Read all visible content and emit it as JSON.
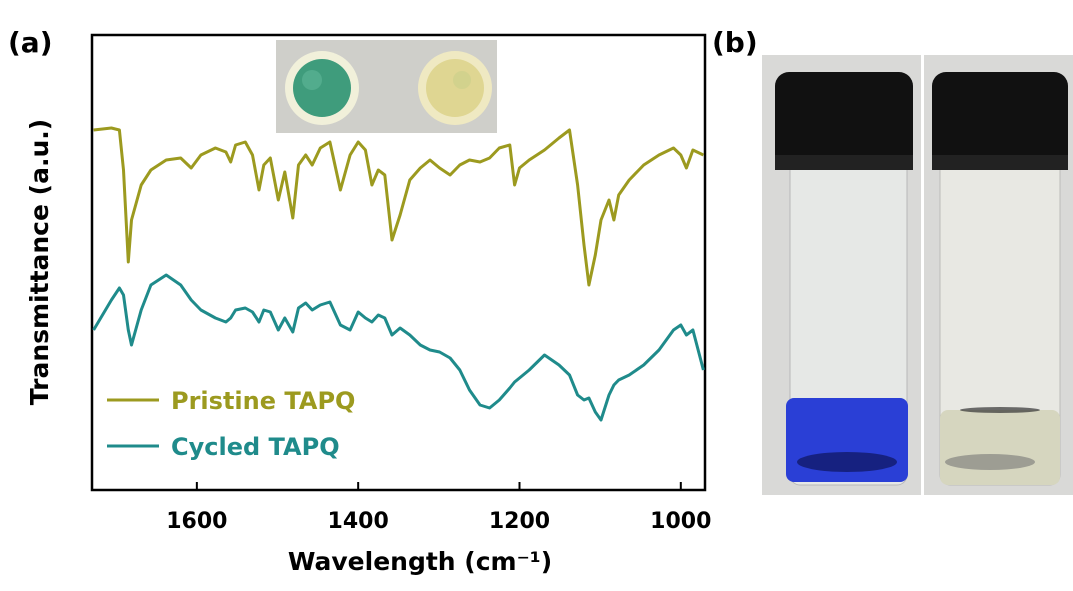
{
  "chart_data": {
    "type": "line",
    "panel_labels": [
      "(a)",
      "(b)"
    ],
    "xlabel": "Wavelength (cm⁻¹)",
    "ylabel": "Transmittance (a.u.)",
    "xlim": [
      1730,
      970
    ],
    "xticks": [
      1600,
      1400,
      1200,
      1000
    ],
    "ylim": [
      0,
      455
    ],
    "legend": "lower left",
    "x": [
      1728,
      1706,
      1696,
      1691,
      1685,
      1681,
      1669,
      1657,
      1638,
      1620,
      1607,
      1595,
      1577,
      1564,
      1558,
      1552,
      1540,
      1531,
      1523,
      1517,
      1509,
      1499,
      1491,
      1481,
      1474,
      1465,
      1457,
      1447,
      1435,
      1422,
      1410,
      1400,
      1391,
      1383,
      1375,
      1367,
      1358,
      1348,
      1336,
      1323,
      1311,
      1299,
      1286,
      1274,
      1262,
      1249,
      1237,
      1225,
      1212,
      1206,
      1200,
      1188,
      1169,
      1151,
      1138,
      1128,
      1120,
      1114,
      1106,
      1099,
      1089,
      1083,
      1077,
      1064,
      1046,
      1027,
      1009,
      1000,
      993,
      985,
      972
    ],
    "series": [
      {
        "name": "Pristine TAPQ",
        "color": "#9c9a1f",
        "values": [
          360,
          362,
          360,
          320,
          228,
          270,
          305,
          320,
          330,
          332,
          322,
          335,
          342,
          338,
          328,
          345,
          348,
          335,
          300,
          325,
          332,
          290,
          318,
          272,
          325,
          335,
          325,
          342,
          348,
          300,
          335,
          348,
          340,
          305,
          320,
          315,
          250,
          275,
          310,
          322,
          330,
          322,
          315,
          325,
          330,
          328,
          332,
          342,
          345,
          305,
          322,
          330,
          340,
          352,
          360,
          305,
          245,
          205,
          235,
          270,
          290,
          270,
          295,
          310,
          325,
          335,
          342,
          335,
          322,
          340,
          335
        ]
      },
      {
        "name": "Cycled TAPQ",
        "color": "#1f8b8b",
        "values": [
          160,
          190,
          202,
          195,
          160,
          145,
          180,
          205,
          215,
          205,
          190,
          180,
          172,
          168,
          172,
          180,
          182,
          178,
          168,
          180,
          178,
          160,
          172,
          158,
          182,
          187,
          180,
          185,
          188,
          165,
          160,
          178,
          172,
          168,
          175,
          172,
          155,
          162,
          155,
          145,
          140,
          138,
          132,
          120,
          100,
          85,
          82,
          90,
          102,
          108,
          112,
          120,
          135,
          125,
          115,
          95,
          90,
          92,
          78,
          70,
          95,
          105,
          110,
          115,
          125,
          140,
          160,
          165,
          155,
          160,
          120
        ]
      }
    ]
  }
}
